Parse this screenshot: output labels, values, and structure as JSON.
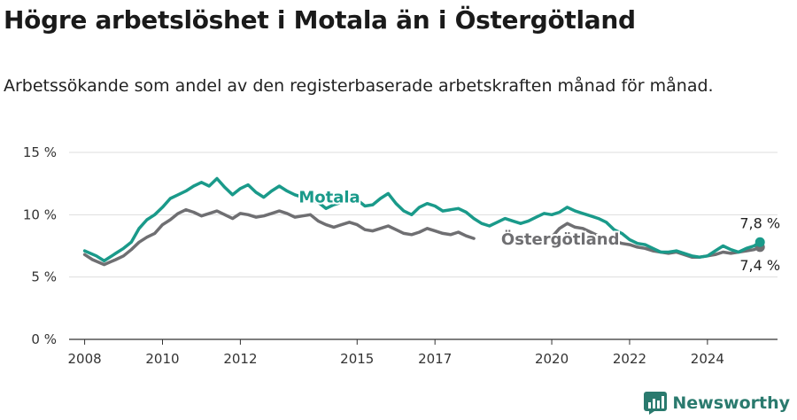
{
  "title": "Högre arbetslöshet i Motala än i Östergötland",
  "subtitle": "Arbetssökande som andel av den registerbaserade arbetskraften månad för månad.",
  "brand": "Newsworthy",
  "colors": {
    "motala": "#1a9a8a",
    "ostergotland": "#6f6f72",
    "grid": "#dddddd",
    "axis": "#333333",
    "brand": "#2a7a6e"
  },
  "chart_data": {
    "type": "line",
    "x_ticks": [
      2008,
      2010,
      2012,
      2015,
      2017,
      2020,
      2022,
      2024
    ],
    "y_ticks": [
      0,
      5,
      10,
      15
    ],
    "y_tick_labels": [
      "0 %",
      "5 %",
      "10 %",
      "15 %"
    ],
    "xlim": [
      2007.6,
      2025.8
    ],
    "ylim": [
      0,
      15
    ],
    "grid": true,
    "series": [
      {
        "name": "Motala",
        "end_label": "7,8 %",
        "points": [
          [
            2008.0,
            7.1
          ],
          [
            2008.3,
            6.7
          ],
          [
            2008.5,
            6.3
          ],
          [
            2008.8,
            6.9
          ],
          [
            2009.0,
            7.3
          ],
          [
            2009.2,
            7.8
          ],
          [
            2009.4,
            8.9
          ],
          [
            2009.6,
            9.6
          ],
          [
            2009.8,
            10.0
          ],
          [
            2010.0,
            10.6
          ],
          [
            2010.2,
            11.3
          ],
          [
            2010.4,
            11.6
          ],
          [
            2010.6,
            11.9
          ],
          [
            2010.8,
            12.3
          ],
          [
            2011.0,
            12.6
          ],
          [
            2011.2,
            12.3
          ],
          [
            2011.4,
            12.9
          ],
          [
            2011.6,
            12.2
          ],
          [
            2011.8,
            11.6
          ],
          [
            2012.0,
            12.1
          ],
          [
            2012.2,
            12.4
          ],
          [
            2012.4,
            11.8
          ],
          [
            2012.6,
            11.4
          ],
          [
            2012.8,
            11.9
          ],
          [
            2013.0,
            12.3
          ],
          [
            2013.2,
            11.9
          ],
          [
            2013.4,
            11.6
          ],
          [
            2013.6,
            11.4
          ],
          [
            2013.8,
            11.2
          ],
          [
            2014.0,
            11.0
          ],
          [
            2014.2,
            10.5
          ],
          [
            2014.4,
            10.8
          ],
          [
            2014.6,
            11.0
          ],
          [
            2014.8,
            11.5
          ],
          [
            2015.0,
            11.2
          ],
          [
            2015.2,
            10.7
          ],
          [
            2015.4,
            10.8
          ],
          [
            2015.6,
            11.3
          ],
          [
            2015.8,
            11.7
          ],
          [
            2016.0,
            10.9
          ],
          [
            2016.2,
            10.3
          ],
          [
            2016.4,
            10.0
          ],
          [
            2016.6,
            10.6
          ],
          [
            2016.8,
            10.9
          ],
          [
            2017.0,
            10.7
          ],
          [
            2017.2,
            10.3
          ],
          [
            2017.4,
            10.4
          ],
          [
            2017.6,
            10.5
          ],
          [
            2017.8,
            10.2
          ],
          [
            2018.0,
            9.7
          ],
          [
            2018.2,
            9.3
          ],
          [
            2018.4,
            9.1
          ],
          [
            2018.6,
            9.4
          ],
          [
            2018.8,
            9.7
          ],
          [
            2019.0,
            9.5
          ],
          [
            2019.2,
            9.3
          ],
          [
            2019.4,
            9.5
          ],
          [
            2019.6,
            9.8
          ],
          [
            2019.8,
            10.1
          ],
          [
            2020.0,
            10.0
          ],
          [
            2020.2,
            10.2
          ],
          [
            2020.4,
            10.6
          ],
          [
            2020.6,
            10.3
          ],
          [
            2020.8,
            10.1
          ],
          [
            2021.0,
            9.9
          ],
          [
            2021.2,
            9.7
          ],
          [
            2021.4,
            9.4
          ],
          [
            2021.6,
            8.8
          ],
          [
            2021.8,
            8.5
          ],
          [
            2022.0,
            8.0
          ],
          [
            2022.2,
            7.7
          ],
          [
            2022.4,
            7.6
          ],
          [
            2022.6,
            7.3
          ],
          [
            2022.8,
            7.0
          ],
          [
            2023.0,
            7.0
          ],
          [
            2023.2,
            7.1
          ],
          [
            2023.4,
            6.9
          ],
          [
            2023.6,
            6.7
          ],
          [
            2023.8,
            6.6
          ],
          [
            2024.0,
            6.7
          ],
          [
            2024.2,
            7.1
          ],
          [
            2024.4,
            7.5
          ],
          [
            2024.6,
            7.2
          ],
          [
            2024.8,
            7.0
          ],
          [
            2025.0,
            7.3
          ],
          [
            2025.2,
            7.5
          ],
          [
            2025.35,
            7.8
          ]
        ]
      },
      {
        "name": "Östergötland",
        "end_label": "7,4 %",
        "points": [
          [
            2008.0,
            6.8
          ],
          [
            2008.2,
            6.4
          ],
          [
            2008.5,
            6.0
          ],
          [
            2008.8,
            6.4
          ],
          [
            2009.0,
            6.7
          ],
          [
            2009.2,
            7.2
          ],
          [
            2009.4,
            7.8
          ],
          [
            2009.6,
            8.2
          ],
          [
            2009.8,
            8.5
          ],
          [
            2010.0,
            9.2
          ],
          [
            2010.2,
            9.6
          ],
          [
            2010.4,
            10.1
          ],
          [
            2010.6,
            10.4
          ],
          [
            2010.8,
            10.2
          ],
          [
            2011.0,
            9.9
          ],
          [
            2011.2,
            10.1
          ],
          [
            2011.4,
            10.3
          ],
          [
            2011.6,
            10.0
          ],
          [
            2011.8,
            9.7
          ],
          [
            2012.0,
            10.1
          ],
          [
            2012.2,
            10.0
          ],
          [
            2012.4,
            9.8
          ],
          [
            2012.6,
            9.9
          ],
          [
            2012.8,
            10.1
          ],
          [
            2013.0,
            10.3
          ],
          [
            2013.2,
            10.1
          ],
          [
            2013.4,
            9.8
          ],
          [
            2013.6,
            9.9
          ],
          [
            2013.8,
            10.0
          ],
          [
            2014.0,
            9.5
          ],
          [
            2014.2,
            9.2
          ],
          [
            2014.4,
            9.0
          ],
          [
            2014.6,
            9.2
          ],
          [
            2014.8,
            9.4
          ],
          [
            2015.0,
            9.2
          ],
          [
            2015.2,
            8.8
          ],
          [
            2015.4,
            8.7
          ],
          [
            2015.6,
            8.9
          ],
          [
            2015.8,
            9.1
          ],
          [
            2016.0,
            8.8
          ],
          [
            2016.2,
            8.5
          ],
          [
            2016.4,
            8.4
          ],
          [
            2016.6,
            8.6
          ],
          [
            2016.8,
            8.9
          ],
          [
            2017.0,
            8.7
          ],
          [
            2017.2,
            8.5
          ],
          [
            2017.4,
            8.4
          ],
          [
            2017.6,
            8.6
          ],
          [
            2017.8,
            8.3
          ],
          [
            2018.0,
            8.1
          ],
          [
            2019.8,
            8.3
          ],
          [
            2020.0,
            8.2
          ],
          [
            2020.2,
            8.9
          ],
          [
            2020.4,
            9.3
          ],
          [
            2020.6,
            9.0
          ],
          [
            2020.8,
            8.9
          ],
          [
            2021.0,
            8.6
          ],
          [
            2021.2,
            8.3
          ],
          [
            2021.4,
            8.0
          ],
          [
            2021.6,
            7.9
          ],
          [
            2021.8,
            7.7
          ],
          [
            2022.0,
            7.6
          ],
          [
            2022.2,
            7.4
          ],
          [
            2022.4,
            7.3
          ],
          [
            2022.6,
            7.1
          ],
          [
            2022.8,
            7.0
          ],
          [
            2023.0,
            6.9
          ],
          [
            2023.2,
            7.0
          ],
          [
            2023.4,
            6.8
          ],
          [
            2023.6,
            6.6
          ],
          [
            2023.8,
            6.6
          ],
          [
            2024.0,
            6.7
          ],
          [
            2024.2,
            6.8
          ],
          [
            2024.4,
            7.0
          ],
          [
            2024.6,
            6.9
          ],
          [
            2024.8,
            7.0
          ],
          [
            2025.0,
            7.1
          ],
          [
            2025.2,
            7.2
          ],
          [
            2025.35,
            7.4
          ]
        ]
      }
    ]
  }
}
